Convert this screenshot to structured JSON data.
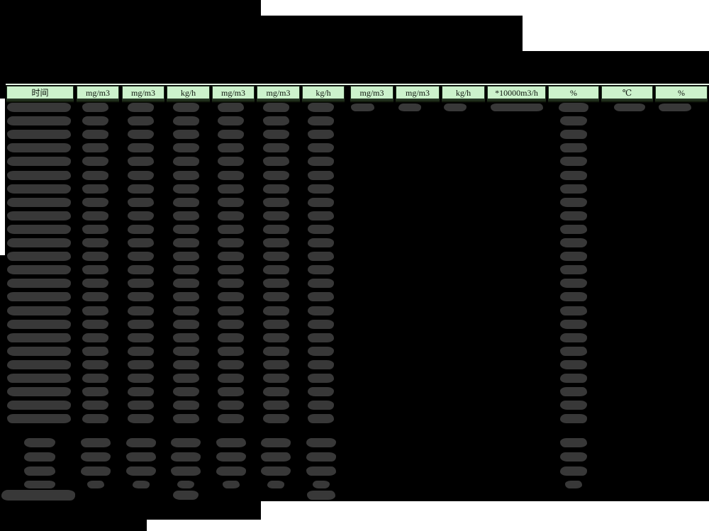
{
  "page": {
    "background_color": "#ffffff",
    "blackout_color": "#000000",
    "redaction_blob_color": "#383838"
  },
  "table": {
    "header": {
      "bg_color": "#ccf2cc",
      "border_color": "#1f301f",
      "text_color": "#101810",
      "columns": [
        {
          "label": "时间"
        },
        {
          "label": "mg/m3"
        },
        {
          "label": "mg/m3"
        },
        {
          "label": "kg/h"
        },
        {
          "label": "mg/m3"
        },
        {
          "label": "mg/m3"
        },
        {
          "label": "kg/h"
        },
        {
          "label": "mg/m3"
        },
        {
          "label": "mg/m3"
        },
        {
          "label": "kg/h"
        },
        {
          "label": "*10000m3/h"
        },
        {
          "label": "%"
        },
        {
          "label": "℃"
        },
        {
          "label": "%"
        }
      ]
    },
    "body": {
      "data_row_count": 24,
      "summary_row_count": 4,
      "footer_row_count": 1,
      "normal_row_redacted_columns": [
        0,
        1,
        2,
        3,
        4,
        5,
        6,
        11
      ],
      "first_row_redacted_columns": [
        0,
        1,
        2,
        3,
        4,
        5,
        6,
        7,
        8,
        9,
        10,
        11,
        12,
        13
      ],
      "summary_row_redacted_columns": [
        0,
        1,
        2,
        3,
        4,
        5,
        6,
        11
      ],
      "footer_row_redacted_columns": [
        0,
        3,
        6
      ]
    }
  }
}
